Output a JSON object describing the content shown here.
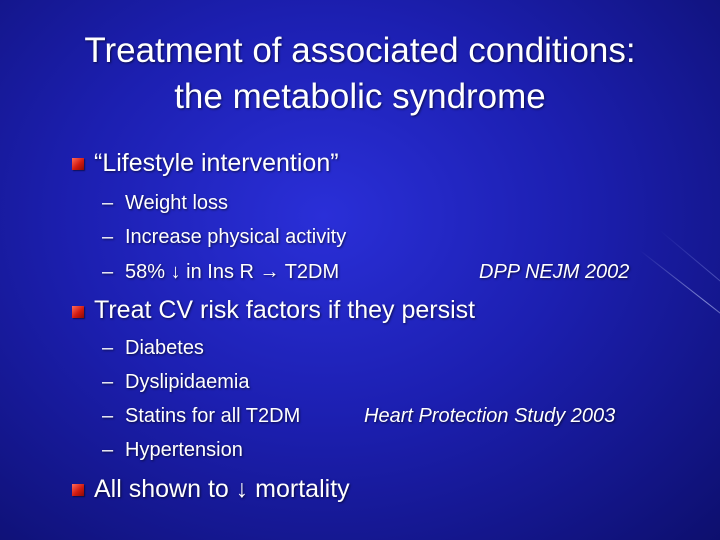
{
  "slide": {
    "title_line1": "Treatment of associated conditions:",
    "title_line2": "the metabolic syndrome"
  },
  "bullets": [
    {
      "text": "“Lifestyle intervention”",
      "subitems": [
        {
          "dash": "–",
          "text": "Weight loss"
        },
        {
          "dash": "–",
          "text": "Increase physical activity"
        },
        {
          "dash": "–",
          "text": "58% ↓ in  Ins R → T2DM"
        }
      ],
      "reference": "DPP NEJM 2002"
    },
    {
      "text": "Treat CV risk factors if they persist",
      "subitems": [
        {
          "dash": "–",
          "text": "Diabetes"
        },
        {
          "dash": "–",
          "text": "Dyslipidaemia"
        },
        {
          "dash": "–",
          "text": "Statins for all T2DM"
        },
        {
          "dash": "–",
          "text": "Hypertension"
        }
      ],
      "reference": "Heart Protection Study 2003"
    },
    {
      "text": "All shown to ↓ mortality"
    }
  ],
  "colors": {
    "background": "#1c1fb0",
    "text": "#ffffff",
    "bullet": "#d11a10"
  }
}
